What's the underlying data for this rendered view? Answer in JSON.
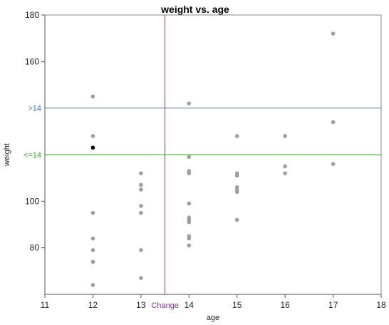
{
  "chart_data": {
    "type": "scatter",
    "title": "weight vs. age",
    "xlabel": "age",
    "ylabel": "weight",
    "xlim": [
      11,
      18
    ],
    "ylim": [
      60,
      180
    ],
    "x_ticks": [
      11,
      12,
      13,
      14,
      15,
      16,
      17,
      18
    ],
    "y_ticks": [
      80,
      100,
      160,
      180
    ],
    "grid": false,
    "colors": {
      "point": "#9e9e9e",
      "highlight": "#000000",
      "upper_line": "#4472c4",
      "lower_line": "#3aa832",
      "change_line": "#8e2fa8"
    },
    "reference_lines": [
      {
        "label": ">14",
        "y": 140,
        "color": "#4472c4"
      },
      {
        "label": "<=14",
        "y": 120,
        "color": "#3aa832"
      }
    ],
    "change_line": {
      "label": "Change",
      "x": 13.5,
      "color": "#8e2fa8"
    },
    "points": [
      {
        "x": 12,
        "y": 145
      },
      {
        "x": 12,
        "y": 128
      },
      {
        "x": 12,
        "y": 123,
        "highlight": true
      },
      {
        "x": 12,
        "y": 95
      },
      {
        "x": 12,
        "y": 84
      },
      {
        "x": 12,
        "y": 79
      },
      {
        "x": 12,
        "y": 74
      },
      {
        "x": 12,
        "y": 64
      },
      {
        "x": 13,
        "y": 112
      },
      {
        "x": 13,
        "y": 107
      },
      {
        "x": 13,
        "y": 105
      },
      {
        "x": 13,
        "y": 98
      },
      {
        "x": 13,
        "y": 95
      },
      {
        "x": 13,
        "y": 79
      },
      {
        "x": 13,
        "y": 67
      },
      {
        "x": 14,
        "y": 142
      },
      {
        "x": 14,
        "y": 119
      },
      {
        "x": 14,
        "y": 113
      },
      {
        "x": 14,
        "y": 112
      },
      {
        "x": 14,
        "y": 99
      },
      {
        "x": 14,
        "y": 93
      },
      {
        "x": 14,
        "y": 92
      },
      {
        "x": 14,
        "y": 91
      },
      {
        "x": 14,
        "y": 85
      },
      {
        "x": 14,
        "y": 84
      },
      {
        "x": 14,
        "y": 81
      },
      {
        "x": 15,
        "y": 128
      },
      {
        "x": 15,
        "y": 112
      },
      {
        "x": 15,
        "y": 111
      },
      {
        "x": 15,
        "y": 106
      },
      {
        "x": 15,
        "y": 105
      },
      {
        "x": 15,
        "y": 104
      },
      {
        "x": 15,
        "y": 92
      },
      {
        "x": 16,
        "y": 128
      },
      {
        "x": 16,
        "y": 115
      },
      {
        "x": 16,
        "y": 112
      },
      {
        "x": 17,
        "y": 172
      },
      {
        "x": 17,
        "y": 134
      },
      {
        "x": 17,
        "y": 116
      }
    ]
  }
}
